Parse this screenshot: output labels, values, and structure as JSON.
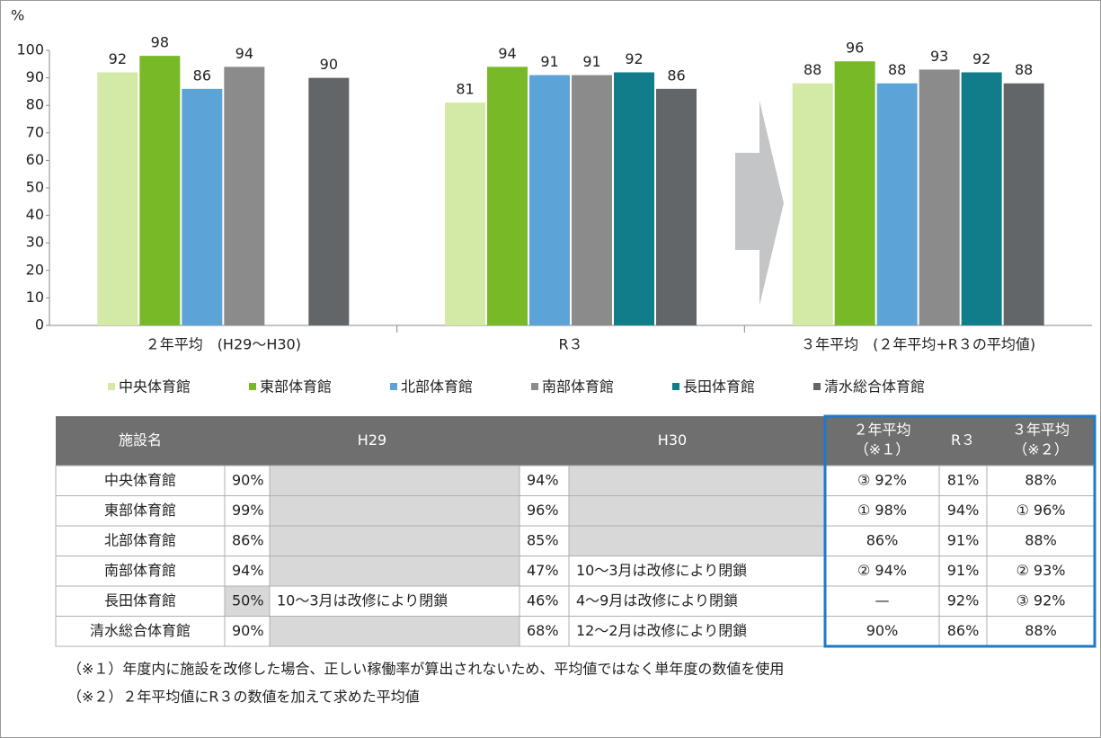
{
  "chart_data": {
    "type": "bar",
    "y_unit": "%",
    "categories": [
      "２年平均　(H29～H30)",
      "R３",
      "３年平均　(２年平均+R３の平均値)"
    ],
    "series": [
      {
        "name": "中央体育館",
        "color": "#d3e9a6",
        "values": [
          92,
          81,
          88
        ]
      },
      {
        "name": "東部体育館",
        "color": "#78b928",
        "values": [
          98,
          94,
          96
        ]
      },
      {
        "name": "北部体育館",
        "color": "#5ca4d8",
        "values": [
          86,
          91,
          88
        ]
      },
      {
        "name": "南部体育館",
        "color": "#8b8b8b",
        "values": [
          94,
          91,
          93
        ]
      },
      {
        "name": "長田体育館",
        "color": "#117c8a",
        "values": [
          null,
          92,
          92
        ]
      },
      {
        "name": "清水総合体育館",
        "color": "#636669",
        "values": [
          90,
          86,
          88
        ]
      }
    ],
    "ylim": [
      0,
      100
    ],
    "yticks": [
      0,
      10,
      20,
      30,
      40,
      50,
      60,
      70,
      80,
      90,
      100
    ],
    "grid": false
  },
  "table": {
    "header": [
      "施設名",
      "H29",
      "H30",
      [
        "２年平均",
        "（※１）"
      ],
      "R３",
      [
        "３年平均",
        "（※２）"
      ]
    ],
    "rows": [
      {
        "name": "中央体育館",
        "h29": "90%",
        "h30": "94%",
        "avg2": "③ 92%",
        "r3": "81%",
        "avg3": "88%"
      },
      {
        "name": "東部体育館",
        "h29": "99%",
        "h30": "96%",
        "avg2": "① 98%",
        "r3": "94%",
        "avg3": "① 96%"
      },
      {
        "name": "北部体育館",
        "h29": "86%",
        "h30": "85%",
        "avg2": "86%",
        "r3": "91%",
        "avg3": "88%"
      },
      {
        "name": "南部体育館",
        "h29": "94%",
        "h30": "47%",
        "h30_note": "10～3月は改修により閉鎖",
        "avg2": "② 94%",
        "r3": "91%",
        "avg3": "② 93%"
      },
      {
        "name": "長田体育館",
        "h29": "50%",
        "h29_note": "10～3月は改修により閉鎖",
        "h30": "46%",
        "h30_note": "4～9月は改修により閉鎖",
        "avg2": "—",
        "r3": "92%",
        "avg3": "③ 92%"
      },
      {
        "name": "清水総合体育館",
        "h29": "90%",
        "h30": "68%",
        "h30_note": "12～2月は改修により閉鎖",
        "avg2": "90%",
        "r3": "86%",
        "avg3": "88%"
      }
    ]
  },
  "notes": [
    "（※１）年度内に施設を改修した場合、正しい稼働率が算出されないため、平均値ではなく単年度の数値を使用",
    "（※２）２年平均値にR３の数値を加えて求めた平均値"
  ]
}
